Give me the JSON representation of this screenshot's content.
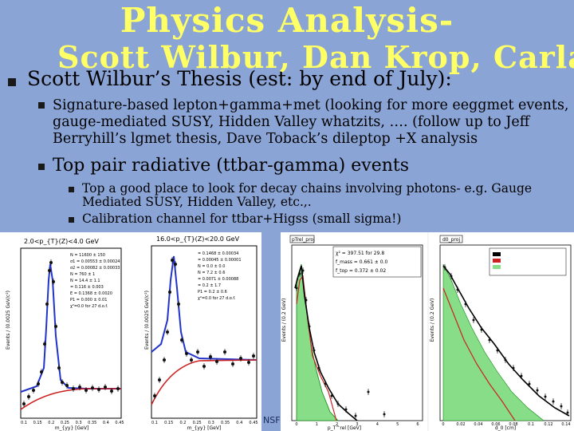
{
  "slide": {
    "title_line1": "Physics Analysis-",
    "title_line2": "Scott Wilbur, Dan Krop, Carla",
    "bullet1": "Scott Wilbur’s Thesis (est: by end of July):",
    "sub1": "Signature-based lepton+gamma+met (looking for more eeggmet events, gauge-mediated SUSY, Hidden Valley whatzits, …. (follow up to Jeff Berryhill’s lgmet thesis, Dave Toback’s dileptop +X analysis",
    "sub2": "Top pair radiative (ttbar-gamma) events",
    "subsub1": "Top a good place to look for decay chains involving photons- e.g. Gauge Mediated SUSY, Hidden Valley, etc.,.",
    "subsub2": "Calibration channel for ttbar+Higss (small sigma!)",
    "footer": "NSF"
  },
  "colors": {
    "title": "#ffff66",
    "background": "#8aa4d6",
    "text": "#000000"
  },
  "plots": {
    "left": {
      "label1": "2.0<p_{T}(Z)<4.0 GeV",
      "label2": "16.0<p_{T}(Z)<20.0 GeV",
      "x_ticks1": [
        "0.1",
        "0.15",
        "0.2",
        "0.25",
        "0.3",
        "0.35",
        "0.4",
        "0.45"
      ],
      "x_ticks2": [
        "0.1",
        "0.15",
        "0.2",
        "0.25",
        "0.3",
        "0.35",
        "0.4",
        "0.45"
      ],
      "xlabel": "m_{yy} [GeV]",
      "ylabel": "Events / (0.0025 GeV/c²)",
      "stats1": [
        "N = 11600 ± 150",
        "σ1 = 0.00553 ± 0.00024",
        "σ2 = 0.00082 ± 0.00033",
        "N = 760 ± 1",
        "N = 14.4 ± 1.1",
        "= 0.116 ± 0.003",
        "E = 0.1368 ± 0.0020",
        "P1 = 0.000 ± 0.01",
        "χ²=0.0 for 27 d.o.f."
      ],
      "stats2": [
        "= 0.1468 ± 0.00034",
        "= 0.00045 ± 0.00001",
        "N = 0.0 ± 0.0",
        "N = 7.2 ± 0.6",
        "= 0.0071 ± 0.00088",
        "= 0.2 ± 1.7",
        "P1 = 0.2 ± 0.6",
        "χ²=0.0 for 27 d.o.f."
      ]
    },
    "right": {
      "label1": "pTrel_proj",
      "label2": "d0_proj",
      "stats": [
        "χ² = 397.51 for 29.8",
        "f_mass = 0.661 ± 0.0",
        "f_top = 0.372 ± 0.02"
      ],
      "x_ticks1": [
        "0",
        "1",
        "2",
        "3",
        "4",
        "5",
        "6"
      ],
      "x_ticks2": [
        "0",
        "0.02",
        "0.04",
        "0.06",
        "0.08",
        "0.1",
        "0.12",
        "0.14"
      ],
      "xlabel1": "p_T^rel [GeV]",
      "xlabel2": "d_0 [cm]",
      "ylabel": "Events / (0.2 GeV)"
    }
  }
}
